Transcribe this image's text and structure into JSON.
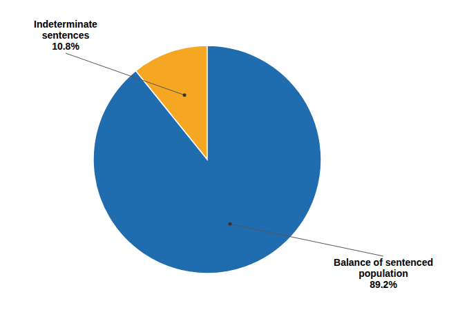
{
  "chart_data": {
    "type": "pie",
    "values": [
      10.8,
      89.2
    ],
    "value_labels": [
      "Indeterminate\nsentences\n10.8%",
      "Balance of sentenced\npopulation\n89.2%"
    ],
    "data_labels": true,
    "colors": [
      "#F5A623",
      "#1F6DAE"
    ]
  }
}
